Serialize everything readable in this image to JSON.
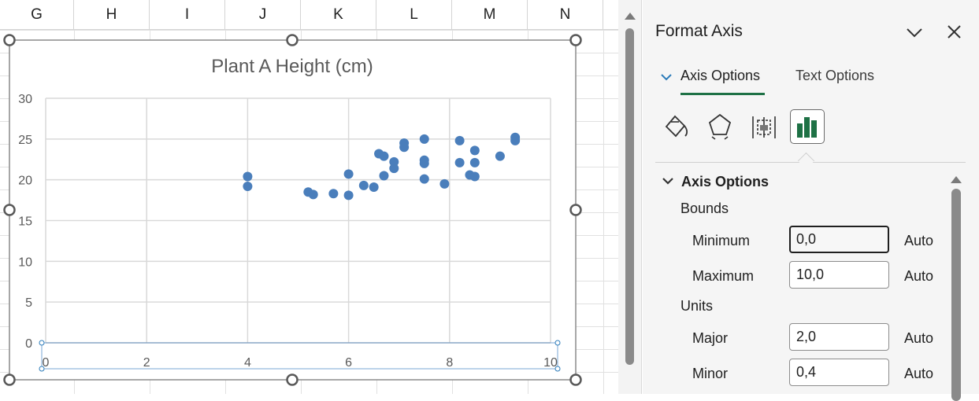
{
  "sheet": {
    "columns": [
      "G",
      "H",
      "I",
      "J",
      "K",
      "L",
      "M",
      "N"
    ]
  },
  "chart_data": {
    "type": "scatter",
    "title": "Plant A Height (cm)",
    "xlim": [
      0,
      10
    ],
    "ylim": [
      0,
      30
    ],
    "x_ticks": [
      0,
      2,
      4,
      6,
      8,
      10
    ],
    "y_ticks": [
      0,
      5,
      10,
      15,
      20,
      25,
      30
    ],
    "grid": true,
    "legend": "none",
    "marker_color": "#4a7ebb",
    "points": [
      {
        "x": 4.0,
        "y": 20.4
      },
      {
        "x": 4.0,
        "y": 19.2
      },
      {
        "x": 5.2,
        "y": 18.5
      },
      {
        "x": 5.3,
        "y": 18.2
      },
      {
        "x": 5.7,
        "y": 18.3
      },
      {
        "x": 6.0,
        "y": 20.7
      },
      {
        "x": 6.0,
        "y": 18.1
      },
      {
        "x": 6.3,
        "y": 19.3
      },
      {
        "x": 6.5,
        "y": 19.1
      },
      {
        "x": 6.6,
        "y": 23.2
      },
      {
        "x": 6.7,
        "y": 22.9
      },
      {
        "x": 6.7,
        "y": 20.5
      },
      {
        "x": 6.9,
        "y": 22.2
      },
      {
        "x": 6.9,
        "y": 21.4
      },
      {
        "x": 7.1,
        "y": 24.5
      },
      {
        "x": 7.1,
        "y": 24.0
      },
      {
        "x": 7.5,
        "y": 25.0
      },
      {
        "x": 7.5,
        "y": 22.4
      },
      {
        "x": 7.5,
        "y": 22.0
      },
      {
        "x": 7.5,
        "y": 20.1
      },
      {
        "x": 7.9,
        "y": 19.5
      },
      {
        "x": 8.2,
        "y": 24.8
      },
      {
        "x": 8.2,
        "y": 22.1
      },
      {
        "x": 8.4,
        "y": 20.6
      },
      {
        "x": 8.5,
        "y": 23.6
      },
      {
        "x": 8.5,
        "y": 22.1
      },
      {
        "x": 8.5,
        "y": 20.4
      },
      {
        "x": 9.0,
        "y": 22.9
      },
      {
        "x": 9.3,
        "y": 25.2
      },
      {
        "x": 9.3,
        "y": 24.8
      }
    ]
  },
  "pane": {
    "title": "Format Axis",
    "tabs": [
      {
        "label": "Axis Options",
        "active": true
      },
      {
        "label": "Text Options",
        "active": false
      }
    ],
    "icons": [
      "fill-line-icon",
      "effects-icon",
      "size-properties-icon",
      "axis-options-icon"
    ],
    "section": {
      "title": "Axis Options",
      "bounds_label": "Bounds",
      "units_label": "Units",
      "fields": {
        "minimum": {
          "label": "Minimum",
          "value": "0,0",
          "auto": "Auto"
        },
        "maximum": {
          "label": "Maximum",
          "value": "10,0",
          "auto": "Auto"
        },
        "major": {
          "label": "Major",
          "value": "2,0",
          "auto": "Auto"
        },
        "minor": {
          "label": "Minor",
          "value": "0,4",
          "auto": "Auto"
        }
      }
    },
    "accent_color": "#1e7145"
  }
}
